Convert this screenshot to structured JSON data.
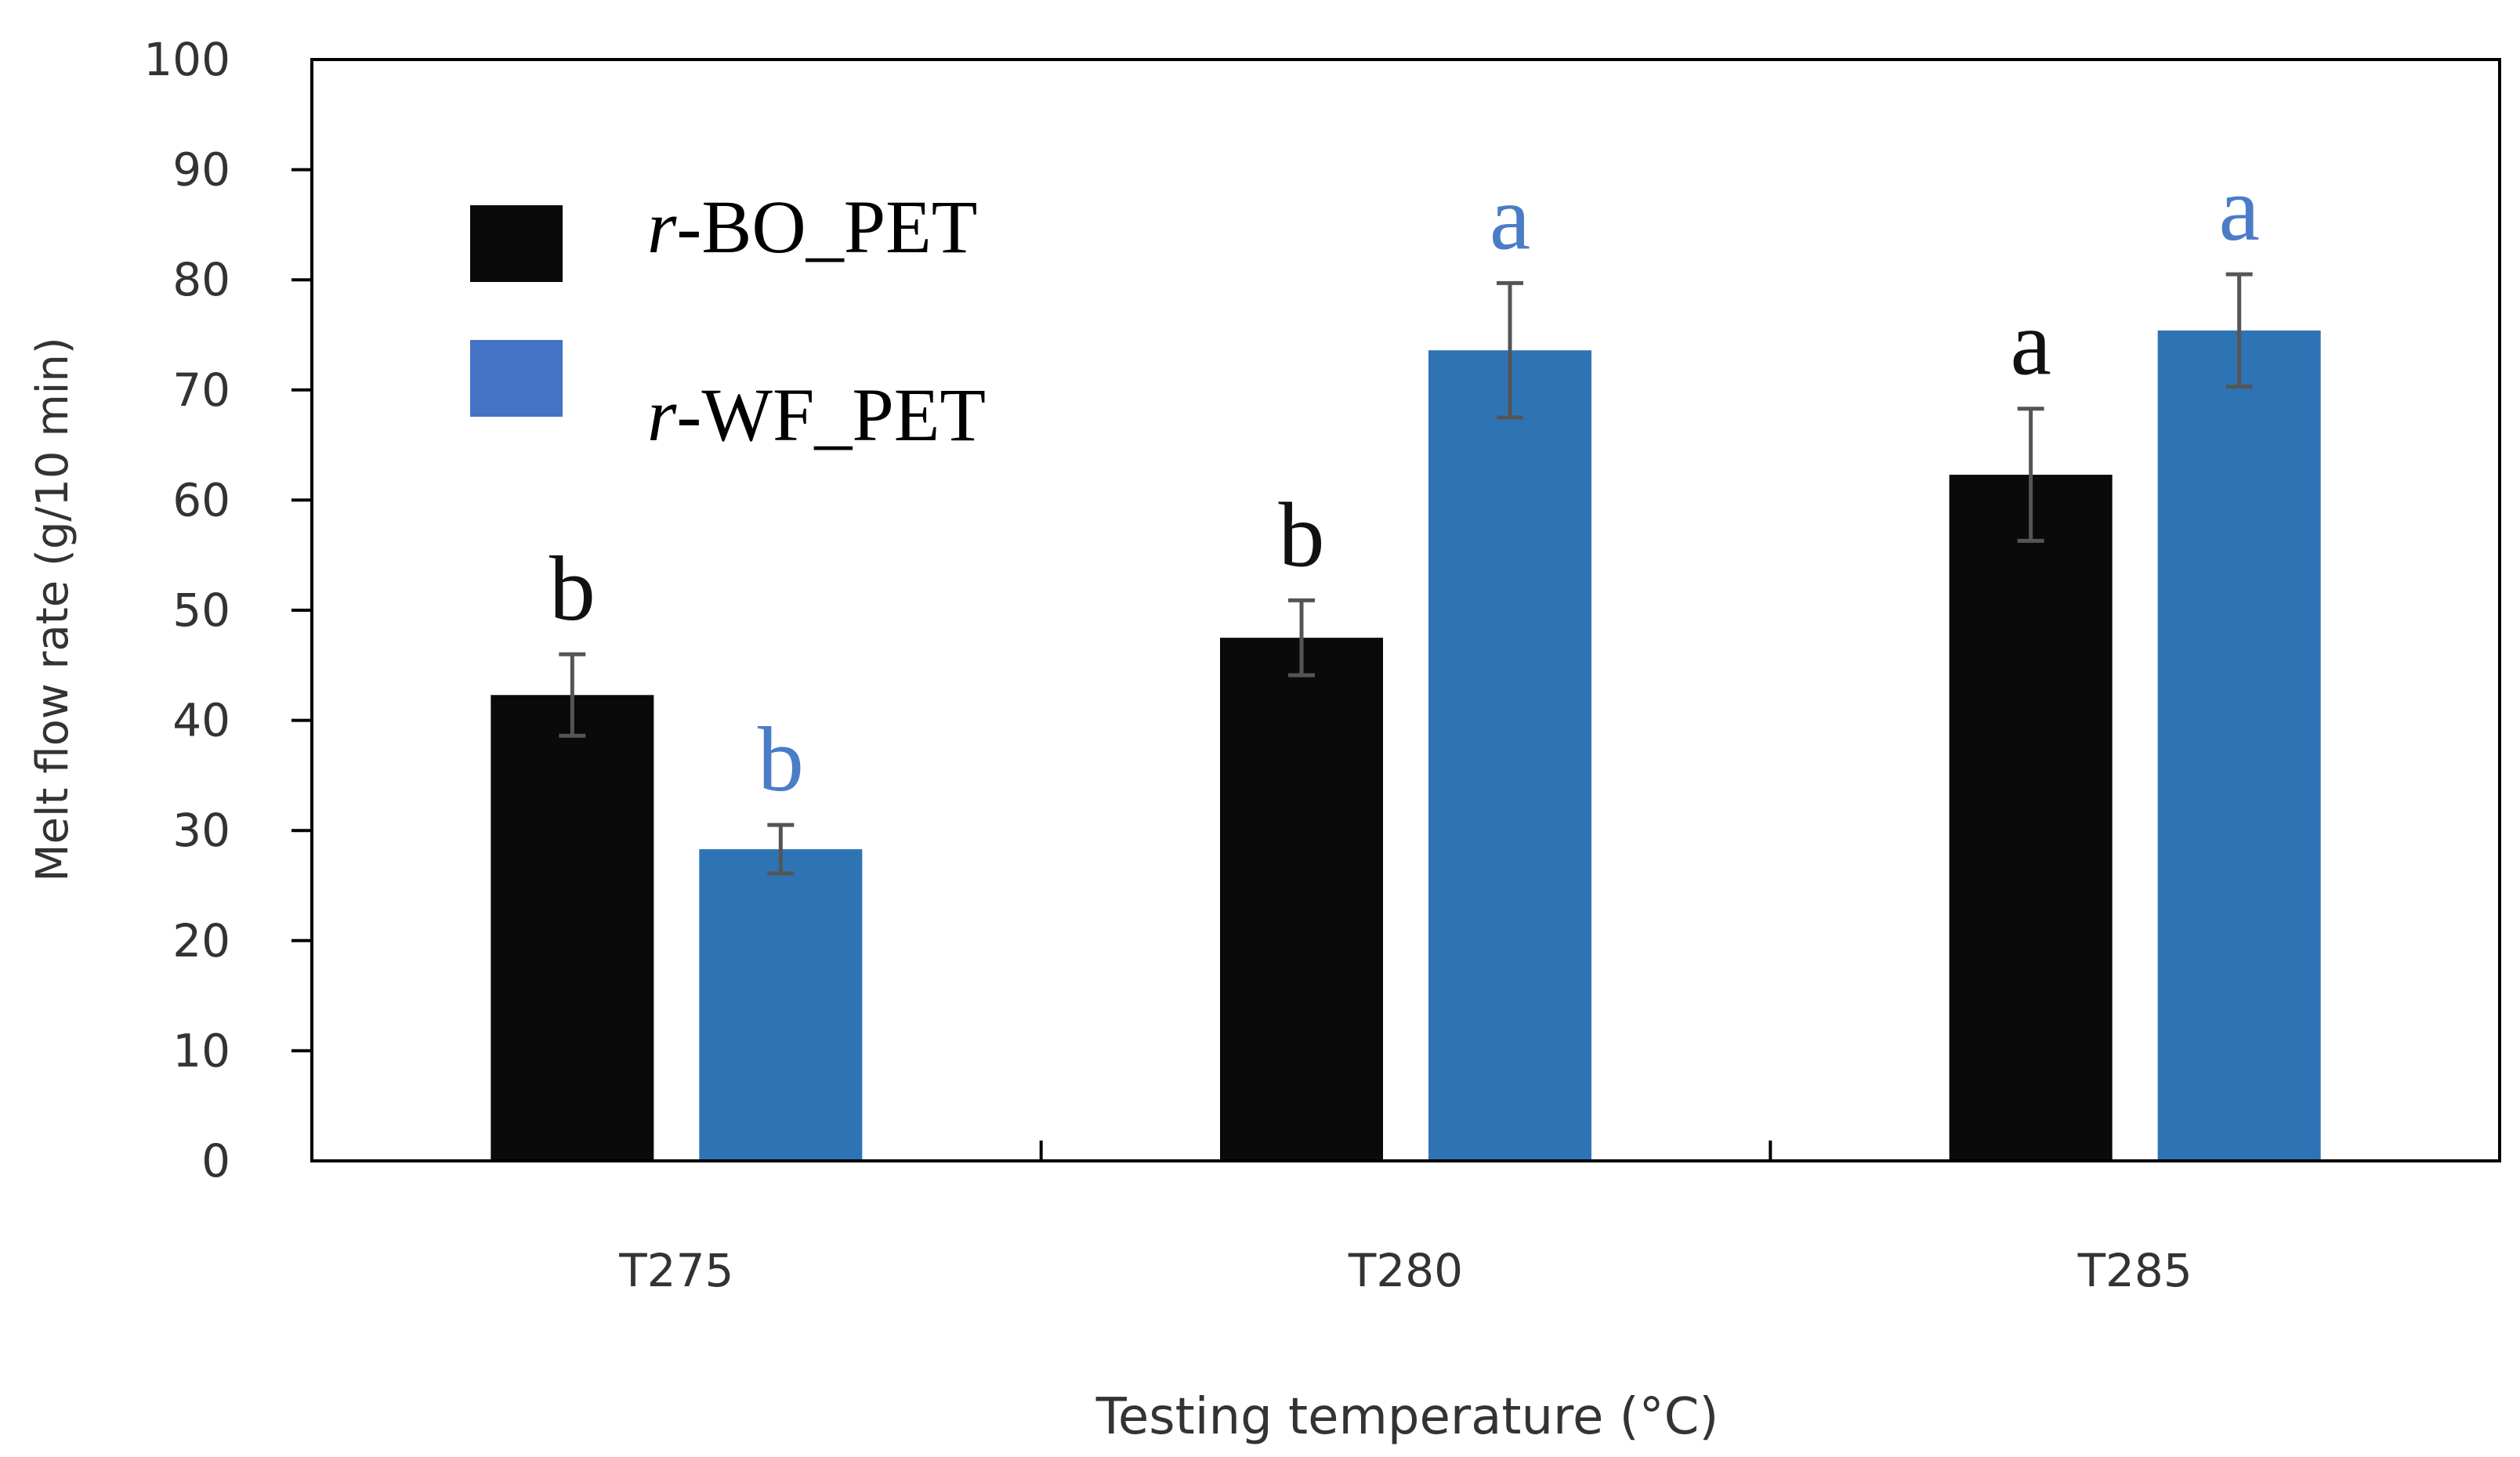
{
  "chart_data": {
    "type": "bar",
    "title": "",
    "xlabel": "Testing temperature (°C)",
    "ylabel": "Melt flow rate (g/10 min)",
    "ylim": [
      0,
      100
    ],
    "yticks": [
      0,
      10,
      20,
      30,
      40,
      50,
      60,
      70,
      80,
      90,
      100
    ],
    "grid": false,
    "legend_position": "top-left",
    "categories": [
      "T275",
      "T280",
      "T285"
    ],
    "series": [
      {
        "name": "r-BO_PET",
        "legend_prefix": "r",
        "legend_suffix": "-BO_PET",
        "color": "#0a0a0a",
        "label_color": "#111111",
        "values": [
          42.3,
          47.5,
          62.3
        ],
        "errors": [
          3.7,
          3.4,
          6.0
        ],
        "letters": [
          "b",
          "b",
          "a"
        ]
      },
      {
        "name": "r-WF_PET",
        "legend_prefix": "r",
        "legend_suffix": "-WF_PET",
        "color": "#2e74b5",
        "legend_color": "#4472c4",
        "label_color": "#4a7cc7",
        "values": [
          28.3,
          73.6,
          75.4
        ],
        "errors": [
          2.2,
          6.1,
          5.1
        ],
        "letters": [
          "b",
          "a",
          "a"
        ]
      }
    ]
  }
}
